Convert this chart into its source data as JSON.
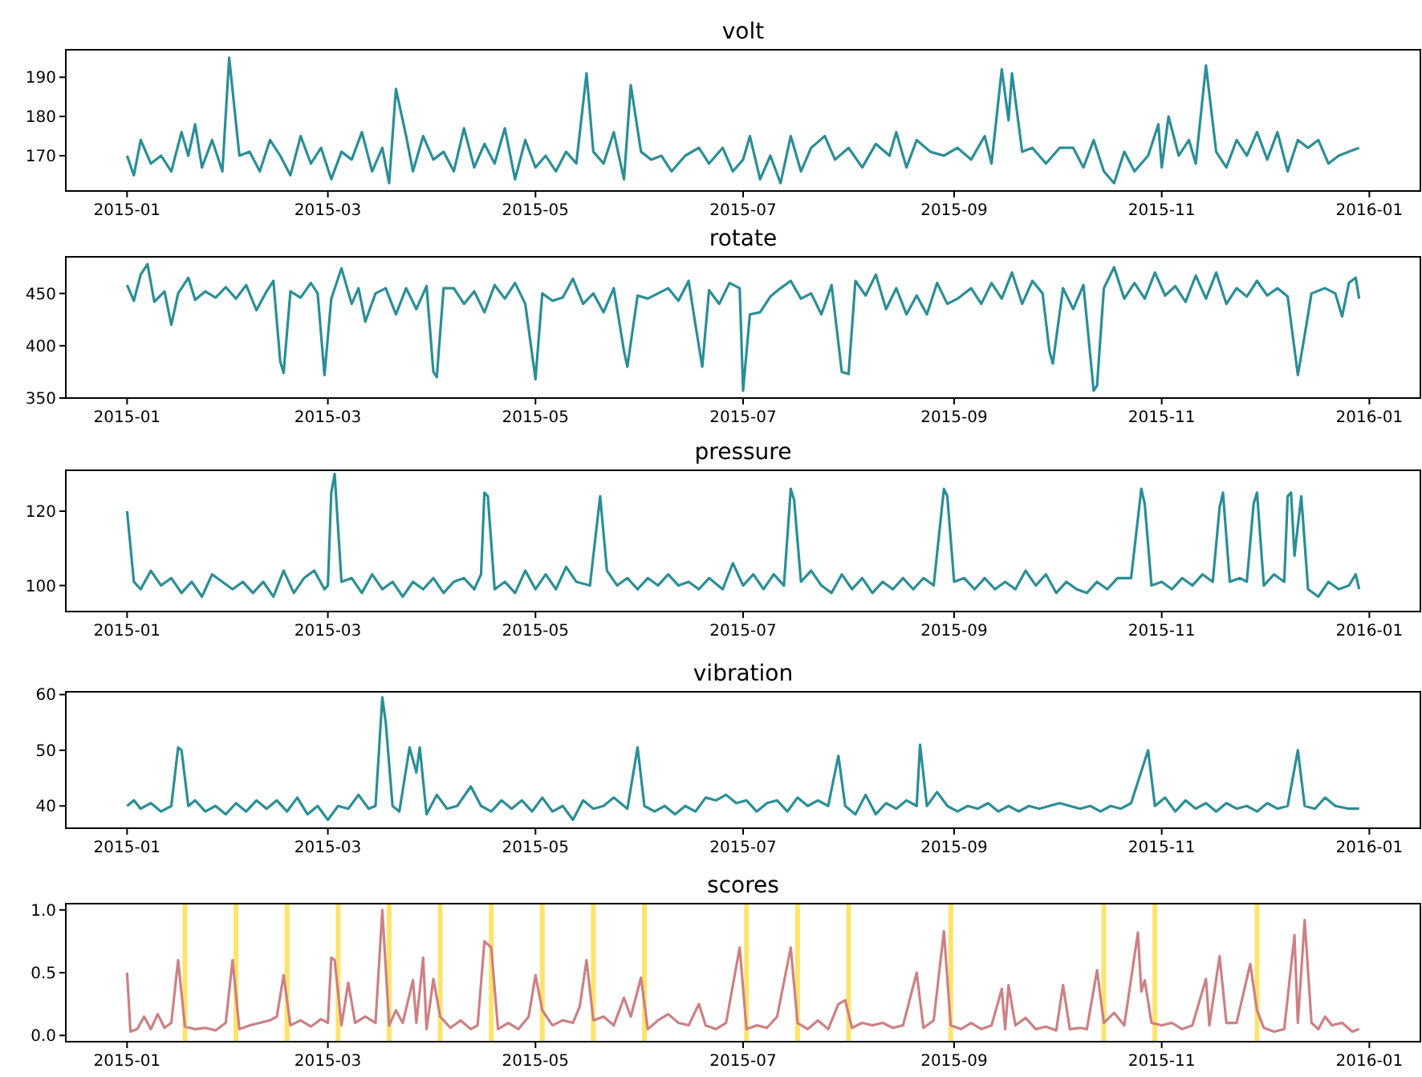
{
  "chart_data": [
    {
      "type": "line",
      "title": "volt",
      "xlim": [
        "2014-12-14",
        "2016-01-16"
      ],
      "xticks": [
        {
          "value": "2015-01-01",
          "label": "2015-01"
        },
        {
          "value": "2015-03-01",
          "label": "2015-03"
        },
        {
          "value": "2015-05-01",
          "label": "2015-05"
        },
        {
          "value": "2015-07-01",
          "label": "2015-07"
        },
        {
          "value": "2015-09-01",
          "label": "2015-09"
        },
        {
          "value": "2015-11-01",
          "label": "2015-11"
        },
        {
          "value": "2016-01-01",
          "label": "2016-01"
        }
      ],
      "ylim": [
        161,
        197
      ],
      "yticks": [
        170,
        180,
        190
      ],
      "x": [
        "2015-01-01",
        "2015-01-03",
        "2015-01-05",
        "2015-01-08",
        "2015-01-11",
        "2015-01-14",
        "2015-01-17",
        "2015-01-19",
        "2015-01-21",
        "2015-01-23",
        "2015-01-26",
        "2015-01-29",
        "2015-01-31",
        "2015-02-03",
        "2015-02-06",
        "2015-02-09",
        "2015-02-12",
        "2015-02-15",
        "2015-02-18",
        "2015-02-21",
        "2015-02-24",
        "2015-02-27",
        "2015-03-02",
        "2015-03-05",
        "2015-03-08",
        "2015-03-11",
        "2015-03-14",
        "2015-03-17",
        "2015-03-19",
        "2015-03-21",
        "2015-03-24",
        "2015-03-26",
        "2015-03-29",
        "2015-04-01",
        "2015-04-04",
        "2015-04-07",
        "2015-04-10",
        "2015-04-13",
        "2015-04-16",
        "2015-04-19",
        "2015-04-22",
        "2015-04-25",
        "2015-04-28",
        "2015-05-01",
        "2015-05-04",
        "2015-05-07",
        "2015-05-10",
        "2015-05-13",
        "2015-05-16",
        "2015-05-18",
        "2015-05-21",
        "2015-05-24",
        "2015-05-27",
        "2015-05-29",
        "2015-06-01",
        "2015-06-04",
        "2015-06-07",
        "2015-06-10",
        "2015-06-14",
        "2015-06-18",
        "2015-06-21",
        "2015-06-25",
        "2015-06-28",
        "2015-07-01",
        "2015-07-03",
        "2015-07-06",
        "2015-07-09",
        "2015-07-12",
        "2015-07-15",
        "2015-07-18",
        "2015-07-21",
        "2015-07-25",
        "2015-07-28",
        "2015-08-01",
        "2015-08-05",
        "2015-08-09",
        "2015-08-13",
        "2015-08-15",
        "2015-08-18",
        "2015-08-21",
        "2015-08-25",
        "2015-08-29",
        "2015-09-02",
        "2015-09-06",
        "2015-09-10",
        "2015-09-12",
        "2015-09-15",
        "2015-09-17",
        "2015-09-18",
        "2015-09-21",
        "2015-09-24",
        "2015-09-28",
        "2015-10-02",
        "2015-10-06",
        "2015-10-09",
        "2015-10-12",
        "2015-10-15",
        "2015-10-18",
        "2015-10-21",
        "2015-10-24",
        "2015-10-28",
        "2015-10-31",
        "2015-11-01",
        "2015-11-03",
        "2015-11-06",
        "2015-11-09",
        "2015-11-11",
        "2015-11-14",
        "2015-11-17",
        "2015-11-20",
        "2015-11-23",
        "2015-11-26",
        "2015-11-29",
        "2015-12-02",
        "2015-12-05",
        "2015-12-08",
        "2015-12-11",
        "2015-12-14",
        "2015-12-17",
        "2015-12-20",
        "2015-12-23",
        "2015-12-26",
        "2015-12-29"
      ],
      "series": [
        {
          "color": "#2b8e96",
          "values": [
            170,
            165,
            174,
            168,
            170,
            166,
            176,
            170,
            178,
            167,
            174,
            166,
            195,
            170,
            171,
            166,
            174,
            170,
            165,
            175,
            168,
            172,
            164,
            171,
            169,
            176,
            166,
            172,
            163,
            187,
            175,
            166,
            175,
            169,
            171,
            166,
            177,
            167,
            173,
            168,
            177,
            164,
            174,
            167,
            170,
            166,
            171,
            168,
            191,
            171,
            168,
            176,
            164,
            188,
            171,
            169,
            170,
            166,
            170,
            172,
            168,
            172,
            166,
            169,
            175,
            164,
            170,
            163,
            175,
            166,
            172,
            175,
            169,
            172,
            167,
            173,
            170,
            176,
            167,
            174,
            171,
            170,
            172,
            169,
            175,
            168,
            192,
            179,
            191,
            171,
            172,
            168,
            172,
            172,
            167,
            174,
            166,
            163,
            171,
            166,
            170,
            178,
            167,
            180,
            170,
            174,
            168,
            193,
            171,
            167,
            174,
            170,
            176,
            169,
            176,
            166,
            174,
            172,
            174,
            168,
            170,
            171,
            172
          ]
        }
      ]
    },
    {
      "type": "line",
      "title": "rotate",
      "xlim": [
        "2014-12-14",
        "2016-01-16"
      ],
      "xticks": [
        {
          "value": "2015-01-01",
          "label": "2015-01"
        },
        {
          "value": "2015-03-01",
          "label": "2015-03"
        },
        {
          "value": "2015-05-01",
          "label": "2015-05"
        },
        {
          "value": "2015-07-01",
          "label": "2015-07"
        },
        {
          "value": "2015-09-01",
          "label": "2015-09"
        },
        {
          "value": "2015-11-01",
          "label": "2015-11"
        },
        {
          "value": "2016-01-01",
          "label": "2016-01"
        }
      ],
      "ylim": [
        350,
        485
      ],
      "yticks": [
        350,
        400,
        450
      ],
      "x": [
        "2015-01-01",
        "2015-01-03",
        "2015-01-05",
        "2015-01-07",
        "2015-01-09",
        "2015-01-12",
        "2015-01-14",
        "2015-01-16",
        "2015-01-19",
        "2015-01-21",
        "2015-01-24",
        "2015-01-27",
        "2015-01-30",
        "2015-02-02",
        "2015-02-05",
        "2015-02-08",
        "2015-02-11",
        "2015-02-13",
        "2015-02-15",
        "2015-02-16",
        "2015-02-18",
        "2015-02-21",
        "2015-02-24",
        "2015-02-26",
        "2015-02-28",
        "2015-03-02",
        "2015-03-05",
        "2015-03-08",
        "2015-03-10",
        "2015-03-12",
        "2015-03-15",
        "2015-03-18",
        "2015-03-21",
        "2015-03-24",
        "2015-03-27",
        "2015-03-30",
        "2015-04-01",
        "2015-04-02",
        "2015-04-04",
        "2015-04-07",
        "2015-04-10",
        "2015-04-13",
        "2015-04-16",
        "2015-04-19",
        "2015-04-22",
        "2015-04-25",
        "2015-04-28",
        "2015-05-01",
        "2015-05-03",
        "2015-05-06",
        "2015-05-09",
        "2015-05-12",
        "2015-05-15",
        "2015-05-18",
        "2015-05-21",
        "2015-05-24",
        "2015-05-27",
        "2015-05-28",
        "2015-05-31",
        "2015-06-03",
        "2015-06-06",
        "2015-06-09",
        "2015-06-12",
        "2015-06-15",
        "2015-06-17",
        "2015-06-19",
        "2015-06-21",
        "2015-06-24",
        "2015-06-27",
        "2015-06-30",
        "2015-07-01",
        "2015-07-03",
        "2015-07-06",
        "2015-07-09",
        "2015-07-12",
        "2015-07-15",
        "2015-07-18",
        "2015-07-21",
        "2015-07-24",
        "2015-07-27",
        "2015-07-30",
        "2015-08-01",
        "2015-08-03",
        "2015-08-06",
        "2015-08-09",
        "2015-08-12",
        "2015-08-15",
        "2015-08-18",
        "2015-08-21",
        "2015-08-24",
        "2015-08-27",
        "2015-08-30",
        "2015-09-02",
        "2015-09-06",
        "2015-09-09",
        "2015-09-12",
        "2015-09-15",
        "2015-09-18",
        "2015-09-21",
        "2015-09-24",
        "2015-09-27",
        "2015-09-29",
        "2015-09-30",
        "2015-10-03",
        "2015-10-06",
        "2015-10-09",
        "2015-10-12",
        "2015-10-13",
        "2015-10-15",
        "2015-10-18",
        "2015-10-21",
        "2015-10-24",
        "2015-10-27",
        "2015-10-30",
        "2015-11-02",
        "2015-11-05",
        "2015-11-08",
        "2015-11-11",
        "2015-11-14",
        "2015-11-17",
        "2015-11-20",
        "2015-11-23",
        "2015-11-26",
        "2015-11-29",
        "2015-12-02",
        "2015-12-05",
        "2015-12-08",
        "2015-12-11",
        "2015-12-13",
        "2015-12-15",
        "2015-12-19",
        "2015-12-22",
        "2015-12-24",
        "2015-12-26",
        "2015-12-28",
        "2015-12-29"
      ],
      "series": [
        {
          "color": "#2b8e96",
          "values": [
            458,
            443,
            468,
            478,
            442,
            452,
            420,
            450,
            465,
            444,
            452,
            446,
            456,
            445,
            458,
            434,
            452,
            462,
            385,
            374,
            452,
            446,
            460,
            450,
            372,
            445,
            474,
            440,
            455,
            423,
            450,
            455,
            430,
            455,
            435,
            457,
            375,
            370,
            455,
            455,
            440,
            452,
            432,
            458,
            445,
            460,
            440,
            368,
            450,
            443,
            446,
            464,
            440,
            450,
            432,
            455,
            395,
            380,
            448,
            445,
            450,
            455,
            443,
            462,
            420,
            380,
            453,
            440,
            460,
            455,
            357,
            430,
            432,
            447,
            455,
            462,
            445,
            450,
            430,
            458,
            375,
            373,
            462,
            448,
            468,
            435,
            455,
            430,
            448,
            430,
            460,
            440,
            445,
            455,
            440,
            460,
            445,
            470,
            440,
            462,
            450,
            395,
            383,
            455,
            435,
            458,
            357,
            362,
            455,
            475,
            445,
            460,
            445,
            470,
            448,
            457,
            442,
            467,
            445,
            470,
            440,
            455,
            447,
            462,
            448,
            455,
            447,
            372,
            410,
            450,
            455,
            450,
            428,
            460,
            465,
            445
          ]
        }
      ]
    },
    {
      "type": "line",
      "title": "pressure",
      "xlim": [
        "2014-12-14",
        "2016-01-16"
      ],
      "xticks": [
        {
          "value": "2015-01-01",
          "label": "2015-01"
        },
        {
          "value": "2015-03-01",
          "label": "2015-03"
        },
        {
          "value": "2015-05-01",
          "label": "2015-05"
        },
        {
          "value": "2015-07-01",
          "label": "2015-07"
        },
        {
          "value": "2015-09-01",
          "label": "2015-09"
        },
        {
          "value": "2015-11-01",
          "label": "2015-11"
        },
        {
          "value": "2016-01-01",
          "label": "2016-01"
        }
      ],
      "ylim": [
        93,
        131
      ],
      "yticks": [
        100,
        120
      ],
      "x": [
        "2015-01-01",
        "2015-01-03",
        "2015-01-05",
        "2015-01-08",
        "2015-01-11",
        "2015-01-14",
        "2015-01-17",
        "2015-01-20",
        "2015-01-23",
        "2015-01-26",
        "2015-01-29",
        "2015-02-01",
        "2015-02-04",
        "2015-02-07",
        "2015-02-10",
        "2015-02-13",
        "2015-02-16",
        "2015-02-19",
        "2015-02-22",
        "2015-02-25",
        "2015-02-28",
        "2015-03-01",
        "2015-03-02",
        "2015-03-03",
        "2015-03-05",
        "2015-03-08",
        "2015-03-11",
        "2015-03-14",
        "2015-03-17",
        "2015-03-20",
        "2015-03-23",
        "2015-03-26",
        "2015-03-29",
        "2015-04-01",
        "2015-04-04",
        "2015-04-07",
        "2015-04-10",
        "2015-04-13",
        "2015-04-15",
        "2015-04-16",
        "2015-04-17",
        "2015-04-19",
        "2015-04-22",
        "2015-04-25",
        "2015-04-28",
        "2015-05-01",
        "2015-05-04",
        "2015-05-07",
        "2015-05-10",
        "2015-05-13",
        "2015-05-17",
        "2015-05-20",
        "2015-05-22",
        "2015-05-25",
        "2015-05-28",
        "2015-05-31",
        "2015-06-03",
        "2015-06-06",
        "2015-06-09",
        "2015-06-12",
        "2015-06-15",
        "2015-06-18",
        "2015-06-21",
        "2015-06-25",
        "2015-06-28",
        "2015-07-01",
        "2015-07-04",
        "2015-07-07",
        "2015-07-10",
        "2015-07-13",
        "2015-07-15",
        "2015-07-16",
        "2015-07-18",
        "2015-07-21",
        "2015-07-24",
        "2015-07-27",
        "2015-07-30",
        "2015-08-02",
        "2015-08-05",
        "2015-08-08",
        "2015-08-11",
        "2015-08-14",
        "2015-08-17",
        "2015-08-20",
        "2015-08-23",
        "2015-08-26",
        "2015-08-29",
        "2015-08-30",
        "2015-09-01",
        "2015-09-04",
        "2015-09-07",
        "2015-09-10",
        "2015-09-13",
        "2015-09-16",
        "2015-09-19",
        "2015-09-22",
        "2015-09-25",
        "2015-09-28",
        "2015-10-01",
        "2015-10-04",
        "2015-10-07",
        "2015-10-10",
        "2015-10-13",
        "2015-10-16",
        "2015-10-19",
        "2015-10-23",
        "2015-10-26",
        "2015-10-27",
        "2015-10-29",
        "2015-11-01",
        "2015-11-04",
        "2015-11-07",
        "2015-11-10",
        "2015-11-13",
        "2015-11-16",
        "2015-11-18",
        "2015-11-19",
        "2015-11-21",
        "2015-11-24",
        "2015-11-26",
        "2015-11-28",
        "2015-11-29",
        "2015-12-01",
        "2015-12-04",
        "2015-12-07",
        "2015-12-08",
        "2015-12-09",
        "2015-12-10",
        "2015-12-12",
        "2015-12-14",
        "2015-12-17",
        "2015-12-20",
        "2015-12-23",
        "2015-12-26",
        "2015-12-28",
        "2015-12-29"
      ],
      "series": [
        {
          "color": "#2b8e96",
          "values": [
            120,
            101,
            99,
            104,
            100,
            102,
            98,
            101,
            97,
            103,
            101,
            99,
            101,
            98,
            101,
            97,
            104,
            98,
            102,
            104,
            99,
            100,
            125,
            130,
            101,
            102,
            98,
            103,
            99,
            101,
            97,
            101,
            99,
            102,
            98,
            101,
            102,
            99,
            103,
            125,
            124,
            99,
            101,
            98,
            104,
            99,
            103,
            99,
            105,
            101,
            100,
            124,
            104,
            100,
            102,
            99,
            102,
            100,
            103,
            100,
            101,
            99,
            102,
            99,
            106,
            100,
            103,
            99,
            103,
            100,
            126,
            123,
            101,
            104,
            100,
            98,
            103,
            99,
            102,
            98,
            101,
            99,
            102,
            99,
            102,
            100,
            126,
            124,
            101,
            102,
            99,
            102,
            99,
            101,
            99,
            104,
            100,
            103,
            98,
            101,
            99,
            98,
            101,
            99,
            102,
            102,
            126,
            122,
            100,
            101,
            99,
            102,
            100,
            103,
            101,
            121,
            125,
            101,
            102,
            101,
            122,
            125,
            100,
            103,
            101,
            124,
            125,
            108,
            124,
            99,
            97,
            101,
            99,
            100,
            103,
            99
          ]
        }
      ]
    },
    {
      "type": "line",
      "title": "vibration",
      "xlim": [
        "2014-12-14",
        "2016-01-16"
      ],
      "xticks": [
        {
          "value": "2015-01-01",
          "label": "2015-01"
        },
        {
          "value": "2015-03-01",
          "label": "2015-03"
        },
        {
          "value": "2015-05-01",
          "label": "2015-05"
        },
        {
          "value": "2015-07-01",
          "label": "2015-07"
        },
        {
          "value": "2015-09-01",
          "label": "2015-09"
        },
        {
          "value": "2015-11-01",
          "label": "2015-11"
        },
        {
          "value": "2016-01-01",
          "label": "2016-01"
        }
      ],
      "ylim": [
        36,
        60.5
      ],
      "yticks": [
        40,
        50,
        60
      ],
      "x": [
        "2015-01-01",
        "2015-01-03",
        "2015-01-05",
        "2015-01-08",
        "2015-01-11",
        "2015-01-14",
        "2015-01-16",
        "2015-01-17",
        "2015-01-19",
        "2015-01-21",
        "2015-01-24",
        "2015-01-27",
        "2015-01-30",
        "2015-02-02",
        "2015-02-05",
        "2015-02-08",
        "2015-02-11",
        "2015-02-14",
        "2015-02-17",
        "2015-02-20",
        "2015-02-23",
        "2015-02-26",
        "2015-03-01",
        "2015-03-04",
        "2015-03-07",
        "2015-03-10",
        "2015-03-13",
        "2015-03-15",
        "2015-03-17",
        "2015-03-18",
        "2015-03-20",
        "2015-03-22",
        "2015-03-25",
        "2015-03-27",
        "2015-03-28",
        "2015-03-30",
        "2015-04-02",
        "2015-04-05",
        "2015-04-08",
        "2015-04-12",
        "2015-04-15",
        "2015-04-18",
        "2015-04-21",
        "2015-04-24",
        "2015-04-27",
        "2015-04-30",
        "2015-05-03",
        "2015-05-06",
        "2015-05-09",
        "2015-05-12",
        "2015-05-15",
        "2015-05-18",
        "2015-05-21",
        "2015-05-24",
        "2015-05-28",
        "2015-05-31",
        "2015-06-02",
        "2015-06-05",
        "2015-06-08",
        "2015-06-11",
        "2015-06-14",
        "2015-06-17",
        "2015-06-20",
        "2015-06-23",
        "2015-06-26",
        "2015-06-29",
        "2015-07-02",
        "2015-07-05",
        "2015-07-08",
        "2015-07-11",
        "2015-07-14",
        "2015-07-17",
        "2015-07-20",
        "2015-07-23",
        "2015-07-26",
        "2015-07-29",
        "2015-07-31",
        "2015-08-03",
        "2015-08-06",
        "2015-08-09",
        "2015-08-12",
        "2015-08-15",
        "2015-08-18",
        "2015-08-21",
        "2015-08-22",
        "2015-08-24",
        "2015-08-27",
        "2015-08-30",
        "2015-09-02",
        "2015-09-05",
        "2015-09-08",
        "2015-09-11",
        "2015-09-14",
        "2015-09-17",
        "2015-09-20",
        "2015-09-23",
        "2015-09-26",
        "2015-09-29",
        "2015-10-02",
        "2015-10-05",
        "2015-10-08",
        "2015-10-11",
        "2015-10-14",
        "2015-10-17",
        "2015-10-20",
        "2015-10-23",
        "2015-10-28",
        "2015-10-30",
        "2015-11-02",
        "2015-11-05",
        "2015-11-08",
        "2015-11-11",
        "2015-11-14",
        "2015-11-17",
        "2015-11-20",
        "2015-11-23",
        "2015-11-26",
        "2015-11-29",
        "2015-12-02",
        "2015-12-05",
        "2015-12-08",
        "2015-12-11",
        "2015-12-13",
        "2015-12-16",
        "2015-12-19",
        "2015-12-22",
        "2015-12-26",
        "2015-12-29"
      ],
      "series": [
        {
          "color": "#2b8e96",
          "values": [
            40,
            41,
            39.5,
            40.5,
            39,
            40,
            50.5,
            50,
            40,
            41,
            39,
            40,
            38.5,
            40.5,
            39,
            41,
            39.5,
            41,
            39,
            41.5,
            38.5,
            40,
            37.5,
            40,
            39.5,
            42,
            39.5,
            40,
            59.5,
            55,
            40,
            39,
            50.5,
            46,
            50.5,
            38.5,
            42,
            39.5,
            40,
            43.5,
            40,
            39,
            41,
            39.5,
            41,
            39,
            41.5,
            39,
            40,
            37.5,
            41,
            39.5,
            40,
            41.5,
            39.5,
            50.5,
            40,
            39,
            40,
            38.5,
            40,
            39,
            41.5,
            41,
            42,
            40.5,
            41,
            39,
            40.5,
            41,
            39,
            41.5,
            40,
            41,
            40,
            49,
            40,
            38.5,
            42,
            38.5,
            40.5,
            39.5,
            41,
            40,
            51,
            40,
            42.5,
            40,
            39,
            40,
            39.5,
            40.5,
            39,
            40,
            39,
            40,
            39.5,
            40,
            40.5,
            40,
            39.5,
            40,
            39,
            40,
            39.5,
            40.5,
            50,
            40,
            41.5,
            39,
            41,
            39.5,
            40.5,
            39,
            40.5,
            39.5,
            40,
            39,
            40.5,
            39.5,
            40,
            50,
            40,
            39.5,
            41.5,
            40,
            39.5,
            39.5
          ]
        }
      ]
    },
    {
      "type": "line",
      "title": "scores",
      "xlim": [
        "2014-12-14",
        "2016-01-16"
      ],
      "xticks": [
        {
          "value": "2015-01-01",
          "label": "2015-01"
        },
        {
          "value": "2015-03-01",
          "label": "2015-03"
        },
        {
          "value": "2015-05-01",
          "label": "2015-05"
        },
        {
          "value": "2015-07-01",
          "label": "2015-07"
        },
        {
          "value": "2015-09-01",
          "label": "2015-09"
        },
        {
          "value": "2015-11-01",
          "label": "2015-11"
        },
        {
          "value": "2016-01-01",
          "label": "2016-01"
        }
      ],
      "ylim": [
        -0.05,
        1.05
      ],
      "yticks": [
        {
          "value": 0,
          "label": "0.0"
        },
        {
          "value": 0.5,
          "label": "0.5"
        },
        {
          "value": 1,
          "label": "1.0"
        }
      ],
      "ref_lines": [
        {
          "axis": "x",
          "value": "2015-01-18",
          "color": "#ffe36b"
        },
        {
          "axis": "x",
          "value": "2015-02-02",
          "color": "#ffe36b"
        },
        {
          "axis": "x",
          "value": "2015-02-17",
          "color": "#ffe36b"
        },
        {
          "axis": "x",
          "value": "2015-03-04",
          "color": "#ffe36b"
        },
        {
          "axis": "x",
          "value": "2015-03-19",
          "color": "#ffe36b"
        },
        {
          "axis": "x",
          "value": "2015-04-03",
          "color": "#ffe36b"
        },
        {
          "axis": "x",
          "value": "2015-04-18",
          "color": "#ffe36b"
        },
        {
          "axis": "x",
          "value": "2015-05-03",
          "color": "#ffe36b"
        },
        {
          "axis": "x",
          "value": "2015-05-18",
          "color": "#ffe36b"
        },
        {
          "axis": "x",
          "value": "2015-06-02",
          "color": "#ffe36b"
        },
        {
          "axis": "x",
          "value": "2015-07-02",
          "color": "#ffe36b"
        },
        {
          "axis": "x",
          "value": "2015-07-17",
          "color": "#ffe36b"
        },
        {
          "axis": "x",
          "value": "2015-08-01",
          "color": "#ffe36b"
        },
        {
          "axis": "x",
          "value": "2015-08-31",
          "color": "#ffe36b"
        },
        {
          "axis": "x",
          "value": "2015-10-15",
          "color": "#ffe36b"
        },
        {
          "axis": "x",
          "value": "2015-10-30",
          "color": "#ffe36b"
        },
        {
          "axis": "x",
          "value": "2015-11-29",
          "color": "#ffe36b"
        }
      ],
      "x": [
        "2015-01-01",
        "2015-01-02",
        "2015-01-04",
        "2015-01-06",
        "2015-01-08",
        "2015-01-10",
        "2015-01-12",
        "2015-01-14",
        "2015-01-16",
        "2015-01-18",
        "2015-01-21",
        "2015-01-24",
        "2015-01-27",
        "2015-01-30",
        "2015-02-01",
        "2015-02-03",
        "2015-02-06",
        "2015-02-09",
        "2015-02-12",
        "2015-02-14",
        "2015-02-16",
        "2015-02-18",
        "2015-02-21",
        "2015-02-24",
        "2015-02-27",
        "2015-03-01",
        "2015-03-02",
        "2015-03-03",
        "2015-03-05",
        "2015-03-07",
        "2015-03-09",
        "2015-03-12",
        "2015-03-15",
        "2015-03-17",
        "2015-03-19",
        "2015-03-21",
        "2015-03-23",
        "2015-03-26",
        "2015-03-27",
        "2015-03-29",
        "2015-03-30",
        "2015-04-01",
        "2015-04-03",
        "2015-04-06",
        "2015-04-09",
        "2015-04-12",
        "2015-04-14",
        "2015-04-16",
        "2015-04-18",
        "2015-04-20",
        "2015-04-23",
        "2015-04-26",
        "2015-04-29",
        "2015-05-01",
        "2015-05-03",
        "2015-05-06",
        "2015-05-09",
        "2015-05-12",
        "2015-05-14",
        "2015-05-16",
        "2015-05-18",
        "2015-05-21",
        "2015-05-24",
        "2015-05-27",
        "2015-05-29",
        "2015-06-01",
        "2015-06-03",
        "2015-06-06",
        "2015-06-09",
        "2015-06-12",
        "2015-06-15",
        "2015-06-18",
        "2015-06-20",
        "2015-06-23",
        "2015-06-26",
        "2015-06-30",
        "2015-07-02",
        "2015-07-05",
        "2015-07-08",
        "2015-07-11",
        "2015-07-15",
        "2015-07-17",
        "2015-07-20",
        "2015-07-23",
        "2015-07-26",
        "2015-07-29",
        "2015-07-31",
        "2015-08-02",
        "2015-08-05",
        "2015-08-08",
        "2015-08-11",
        "2015-08-14",
        "2015-08-17",
        "2015-08-21",
        "2015-08-23",
        "2015-08-26",
        "2015-08-29",
        "2015-08-31",
        "2015-09-03",
        "2015-09-06",
        "2015-09-09",
        "2015-09-12",
        "2015-09-15",
        "2015-09-16",
        "2015-09-17",
        "2015-09-19",
        "2015-09-22",
        "2015-09-25",
        "2015-09-28",
        "2015-10-01",
        "2015-10-03",
        "2015-10-05",
        "2015-10-08",
        "2015-10-10",
        "2015-10-13",
        "2015-10-15",
        "2015-10-18",
        "2015-10-21",
        "2015-10-25",
        "2015-10-26",
        "2015-10-27",
        "2015-10-29",
        "2015-11-01",
        "2015-11-04",
        "2015-11-07",
        "2015-11-10",
        "2015-11-14",
        "2015-11-15",
        "2015-11-18",
        "2015-11-20",
        "2015-11-23",
        "2015-11-27",
        "2015-11-29",
        "2015-12-01",
        "2015-12-04",
        "2015-12-07",
        "2015-12-10",
        "2015-12-11",
        "2015-12-13",
        "2015-12-15",
        "2015-12-17",
        "2015-12-19",
        "2015-12-21",
        "2015-12-24",
        "2015-12-27",
        "2015-12-29"
      ],
      "series": [
        {
          "color": "#cc8184",
          "values": [
            0.5,
            0.03,
            0.05,
            0.15,
            0.05,
            0.17,
            0.06,
            0.1,
            0.6,
            0.07,
            0.05,
            0.06,
            0.04,
            0.1,
            0.6,
            0.05,
            0.08,
            0.1,
            0.12,
            0.15,
            0.48,
            0.08,
            0.12,
            0.07,
            0.13,
            0.1,
            0.62,
            0.6,
            0.08,
            0.42,
            0.1,
            0.15,
            0.1,
            1.0,
            0.08,
            0.2,
            0.1,
            0.44,
            0.1,
            0.62,
            0.05,
            0.45,
            0.15,
            0.06,
            0.12,
            0.05,
            0.08,
            0.75,
            0.7,
            0.05,
            0.1,
            0.05,
            0.15,
            0.48,
            0.2,
            0.08,
            0.12,
            0.1,
            0.23,
            0.6,
            0.12,
            0.15,
            0.08,
            0.3,
            0.15,
            0.46,
            0.05,
            0.12,
            0.17,
            0.1,
            0.08,
            0.25,
            0.08,
            0.05,
            0.1,
            0.7,
            0.05,
            0.08,
            0.06,
            0.15,
            0.7,
            0.1,
            0.05,
            0.12,
            0.05,
            0.25,
            0.28,
            0.06,
            0.1,
            0.08,
            0.1,
            0.06,
            0.08,
            0.5,
            0.06,
            0.12,
            0.83,
            0.08,
            0.05,
            0.1,
            0.05,
            0.08,
            0.37,
            0.05,
            0.4,
            0.08,
            0.14,
            0.05,
            0.07,
            0.04,
            0.4,
            0.05,
            0.06,
            0.05,
            0.52,
            0.1,
            0.18,
            0.08,
            0.82,
            0.35,
            0.44,
            0.1,
            0.08,
            0.1,
            0.05,
            0.08,
            0.45,
            0.08,
            0.63,
            0.1,
            0.1,
            0.57,
            0.2,
            0.06,
            0.03,
            0.05,
            0.8,
            0.1,
            0.92,
            0.1,
            0.05,
            0.15,
            0.08,
            0.1,
            0.03,
            0.05
          ]
        }
      ]
    }
  ]
}
